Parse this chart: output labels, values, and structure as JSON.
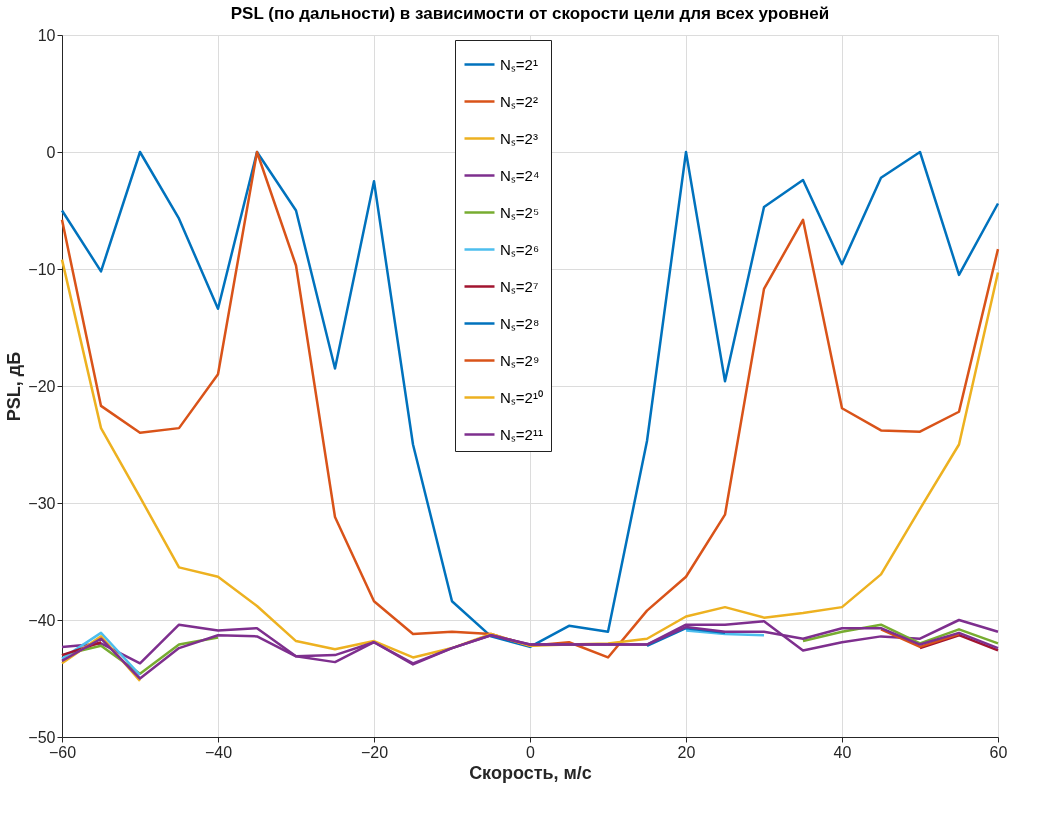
{
  "chart_data": {
    "type": "line",
    "title": "PSL (по дальности) в зависимости от скорости цели для всех уровней",
    "xlabel": "Скорость, м/с",
    "ylabel": "PSL, дБ",
    "x": [
      -60,
      -55,
      -50,
      -45,
      -40,
      -35,
      -30,
      -25,
      -20,
      -15,
      -10,
      -5,
      0,
      5,
      10,
      15,
      20,
      25,
      30,
      35,
      40,
      45,
      50,
      55,
      60
    ],
    "xlim": [
      -60,
      60
    ],
    "xticks": [
      -60,
      -40,
      -20,
      0,
      20,
      40,
      60
    ],
    "ylim": [
      -50,
      10
    ],
    "yticks": [
      -50,
      -40,
      -30,
      -20,
      -10,
      0,
      10
    ],
    "grid": true,
    "legend": "top",
    "line_style": "solid",
    "marker": "none",
    "series": [
      {
        "name": "Nₛ=2¹",
        "color": "#0072bd",
        "values": [
          -5.0,
          -10.2,
          0,
          -5.7,
          -13.4,
          0,
          -5,
          -18.5,
          -2.5,
          -25,
          -38.4,
          -41.4,
          -42.3,
          -40.5,
          -41,
          -24.7,
          0,
          -19.6,
          -4.7,
          -2.4,
          -9.6,
          -2.2,
          0,
          -10.5,
          -4.4
        ]
      },
      {
        "name": "Nₛ=2²",
        "color": "#d95319",
        "values": [
          -5.8,
          -21.7,
          -24,
          -23.6,
          -19,
          0,
          -9.7,
          -31.2,
          -38.4,
          -41.2,
          -41,
          -41.2,
          -42.2,
          -41.9,
          -43.2,
          -39.2,
          -36.3,
          -31,
          -11.7,
          -5.8,
          -21.9,
          -23.8,
          -23.9,
          -22.2,
          -8.3
        ]
      },
      {
        "name": "Nₛ=2³",
        "color": "#edb120",
        "values": [
          -9.2,
          -23.6,
          -29.5,
          -35.5,
          -36.3,
          -38.8,
          -41.8,
          -42.5,
          -41.8,
          -43.2,
          -42.4,
          -41.2,
          -42.2,
          -42.1,
          -42,
          -41.6,
          -39.7,
          -38.9,
          -39.8,
          -39.4,
          -38.9,
          -36.1,
          -30.5,
          -25,
          -10.3
        ]
      },
      {
        "name": "Nₛ=2⁴",
        "color": "#7e2f8e",
        "values": [
          -42.3,
          -42,
          -43.7,
          -40.4,
          -40.9,
          -40.7,
          -43.1,
          -43.6,
          -41.9,
          -43.8,
          -42.4,
          -41.3,
          -42.1,
          -42.1,
          -42.1,
          -42.1,
          -40.4,
          -40.4,
          -40.1,
          -42.6,
          -41.9,
          -41.4,
          -41.6,
          -40,
          -41
        ]
      },
      {
        "name": "Nₛ=2⁵",
        "color": "#77ac30",
        "values": [
          -43,
          -42.2,
          -44.6,
          -42.1,
          -41.5,
          null,
          null,
          null,
          null,
          null,
          null,
          null,
          null,
          null,
          null,
          null,
          null,
          null,
          null,
          -41.8,
          -41,
          -40.4,
          -42,
          -40.8,
          -42
        ]
      },
      {
        "name": "Nₛ=2⁶",
        "color": "#4dbeee",
        "values": [
          -43.3,
          -41.1,
          -44.7,
          null,
          null,
          null,
          null,
          null,
          null,
          null,
          null,
          null,
          null,
          null,
          null,
          null,
          -40.9,
          -41.2,
          -41.3,
          null,
          null,
          null,
          null,
          null,
          null
        ]
      },
      {
        "name": "Nₛ=2⁷",
        "color": "#a2142f",
        "values": [
          -43.0,
          -41.9,
          null,
          null,
          null,
          null,
          null,
          null,
          null,
          null,
          null,
          null,
          null,
          null,
          null,
          null,
          null,
          null,
          null,
          null,
          null,
          null,
          -42.4,
          -41.3,
          -42.6
        ]
      },
      {
        "name": "Nₛ=2⁸",
        "color": "#0072bd",
        "values": [
          null,
          null,
          null,
          null,
          null,
          null,
          null,
          null,
          null,
          null,
          null,
          null,
          null,
          null,
          null,
          -42.2,
          -40.7,
          -41.1,
          null,
          null,
          null,
          null,
          null,
          null,
          null
        ]
      },
      {
        "name": "Nₛ=2⁹",
        "color": "#d95319",
        "values": [
          null,
          null,
          null,
          null,
          null,
          null,
          null,
          null,
          null,
          null,
          null,
          null,
          null,
          null,
          null,
          null,
          null,
          null,
          null,
          null,
          null,
          -40.8,
          -42.3,
          -41.2,
          null
        ]
      },
      {
        "name": "Nₛ=2¹⁰",
        "color": "#edb120",
        "values": [
          -43.7,
          -41.4,
          -45.2,
          null,
          null,
          null,
          null,
          null,
          null,
          null,
          null,
          null,
          null,
          null,
          null,
          null,
          null,
          null,
          null,
          null,
          null,
          null,
          null,
          null,
          null
        ]
      },
      {
        "name": "Nₛ=2¹¹",
        "color": "#7e2f8e",
        "values": [
          -43.5,
          -41.6,
          -45,
          -42.4,
          -41.3,
          -41.4,
          -43.1,
          -43,
          -41.9,
          -43.7,
          -42.4,
          -41.3,
          -42.1,
          -42.1,
          -42.1,
          -42.1,
          -40.6,
          -41,
          -41,
          -41.6,
          -40.7,
          -40.7,
          -42.1,
          -41.1,
          -42.4
        ]
      }
    ]
  }
}
